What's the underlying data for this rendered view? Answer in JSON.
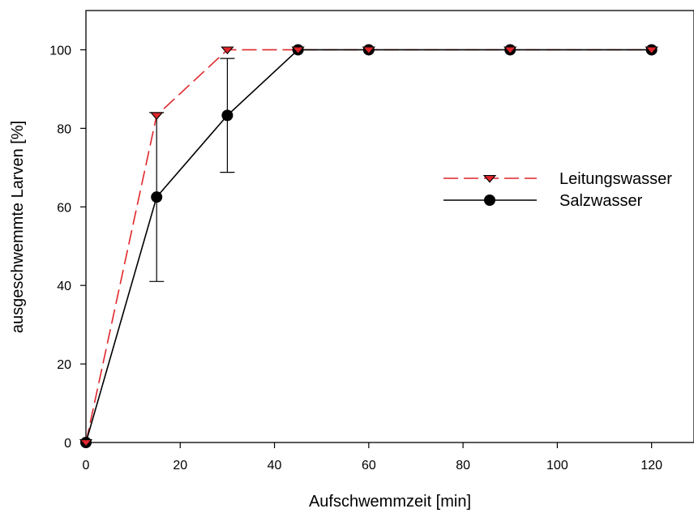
{
  "chart_data": {
    "type": "line",
    "title": "",
    "xlabel": "Aufschwemmzeit [min]",
    "ylabel": "ausgeschwemmte Larven [%]",
    "xlim": [
      0,
      129
    ],
    "ylim": [
      0,
      110
    ],
    "xticks": [
      0,
      20,
      40,
      60,
      80,
      100,
      120
    ],
    "yticks": [
      0,
      20,
      40,
      60,
      80,
      100
    ],
    "grid": false,
    "legend_position": "right",
    "series": [
      {
        "name": "Leitungswasser",
        "color": "#e0262b",
        "line_style": "dashed",
        "marker": "triangle-down",
        "x": [
          0,
          15,
          30,
          45,
          60,
          90,
          120
        ],
        "y": [
          0,
          83.3,
          100,
          100,
          100,
          100,
          100
        ]
      },
      {
        "name": "Salzwasser",
        "color": "#000000",
        "line_style": "solid",
        "marker": "circle",
        "x": [
          0,
          15,
          30,
          45,
          60,
          90,
          120
        ],
        "y": [
          0,
          62.5,
          83.3,
          100,
          100,
          100,
          100
        ],
        "error": [
          0,
          21.5,
          14.5,
          0,
          0,
          0,
          0
        ]
      }
    ]
  }
}
